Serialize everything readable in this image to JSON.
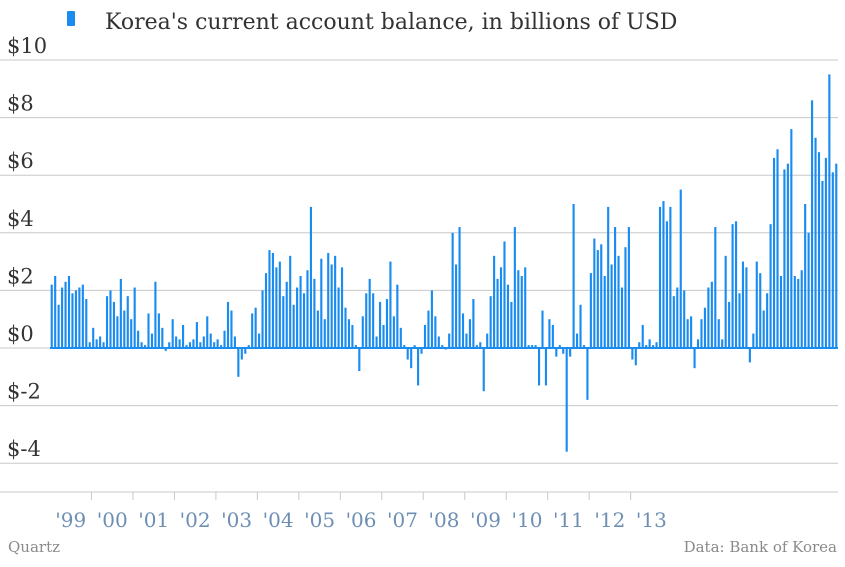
{
  "footer": {
    "left": "Quartz",
    "right": "Data: Bank of Korea"
  },
  "colors": {
    "bar": "#1a8cf0",
    "grid": "#c8c8c8",
    "axis_text": "#333333",
    "year_text": "#6e8fb4"
  },
  "chart_data": {
    "type": "bar",
    "title": "",
    "xlabel": "",
    "ylabel": "",
    "ylim": [
      -5,
      10
    ],
    "yticks": [
      10,
      8,
      6,
      4,
      2,
      0,
      -2,
      -4
    ],
    "ytick_labels": [
      "$10",
      "$8",
      "$6",
      "$4",
      "$2",
      "$0",
      "$-2",
      "$-4"
    ],
    "grid": true,
    "legend_position": "top-left",
    "series": [
      {
        "name": "Korea's current account balance, in billions of USD",
        "start": "1999-01",
        "frequency": "monthly",
        "values": [
          2.2,
          2.5,
          1.5,
          2.1,
          2.3,
          2.5,
          1.9,
          2.0,
          2.1,
          2.2,
          1.7,
          0.2,
          0.7,
          0.3,
          0.4,
          0.2,
          1.8,
          2.0,
          1.6,
          1.1,
          2.4,
          1.3,
          1.8,
          1.0,
          2.1,
          0.6,
          0.2,
          0.1,
          1.2,
          0.5,
          2.3,
          1.2,
          0.7,
          -0.1,
          0.2,
          1.0,
          0.4,
          0.3,
          0.8,
          0.1,
          0.2,
          0.3,
          0.9,
          0.2,
          0.4,
          1.1,
          0.5,
          0.2,
          0.3,
          0.1,
          0.6,
          1.6,
          1.3,
          0.4,
          -1.0,
          -0.4,
          -0.2,
          0.1,
          1.2,
          1.4,
          0.5,
          2.0,
          2.6,
          3.4,
          3.3,
          2.8,
          3.0,
          1.8,
          2.3,
          3.2,
          1.5,
          2.1,
          2.5,
          1.9,
          2.7,
          4.9,
          2.4,
          1.3,
          3.1,
          1.0,
          3.3,
          2.9,
          3.2,
          2.1,
          2.8,
          1.4,
          1.0,
          0.8,
          0.1,
          -0.8,
          1.1,
          1.9,
          2.4,
          1.9,
          0.4,
          1.6,
          0.8,
          1.7,
          3.0,
          1.1,
          2.2,
          0.7,
          0.1,
          -0.4,
          -0.7,
          0.1,
          -1.3,
          -0.2,
          0.8,
          1.3,
          2.0,
          1.1,
          0.4,
          0.1,
          0.0,
          0.5,
          4.0,
          2.9,
          4.2,
          1.2,
          0.5,
          1.0,
          1.7,
          0.1,
          0.2,
          -1.5,
          0.5,
          1.8,
          3.2,
          2.4,
          2.8,
          3.7,
          2.2,
          1.6,
          4.2,
          2.7,
          2.5,
          2.8,
          0.1,
          0.1,
          0.1,
          -1.3,
          1.3,
          -1.3,
          1.0,
          0.8,
          -0.3,
          0.1,
          -0.2,
          -3.6,
          -0.3,
          5.0,
          0.5,
          1.5,
          0.1,
          -1.8,
          2.6,
          3.8,
          3.4,
          3.6,
          2.5,
          4.9,
          2.9,
          4.2,
          3.2,
          2.1,
          3.5,
          4.2,
          -0.4,
          -0.6,
          0.2,
          0.8,
          0.1,
          0.3,
          0.1,
          0.2,
          4.9,
          5.1,
          4.4,
          4.9,
          1.8,
          2.1,
          5.5,
          2.0,
          1.0,
          1.1,
          -0.7,
          0.3,
          1.0,
          1.4,
          2.1,
          2.3,
          4.2,
          1.0,
          0.3,
          3.2,
          1.6,
          4.3,
          4.4,
          1.9,
          3.0,
          2.8,
          -0.5,
          0.5,
          3.0,
          2.6,
          1.3,
          1.9,
          4.3,
          6.6,
          6.9,
          2.5,
          6.2,
          6.4,
          7.6,
          2.5,
          2.4,
          2.7,
          5.0,
          4.0,
          8.6,
          7.3,
          6.8,
          5.8,
          6.6,
          9.5,
          6.1,
          6.4
        ]
      }
    ],
    "year_labels": [
      "'99",
      "'00",
      "'01",
      "'02",
      "'03",
      "'04",
      "'05",
      "'06",
      "'07",
      "'08",
      "'09",
      "'10",
      "'11",
      "'12",
      "'13"
    ]
  }
}
